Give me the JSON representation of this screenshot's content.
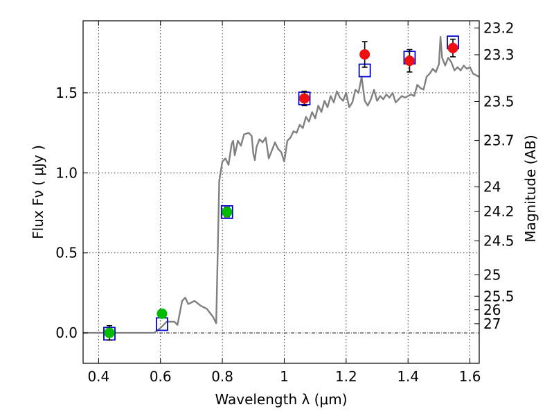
{
  "chart_data": {
    "type": "scatter",
    "xlabel": "Wavelength  λ (μm)",
    "ylabel": "Flux  Fν ( μJy )",
    "ylabel_right": "Magnitude (AB)",
    "xlim": [
      0.35,
      1.63
    ],
    "ylim": [
      -0.19,
      1.95
    ],
    "grid": true,
    "x_ticks": [
      0.4,
      0.6,
      0.8,
      1.0,
      1.2,
      1.4,
      1.6
    ],
    "x_tick_labels": [
      "0.4",
      "0.6",
      "0.8",
      "1",
      "1.2",
      "1.4",
      "1.6"
    ],
    "y_ticks": [
      0.0,
      0.5,
      1.0,
      1.5
    ],
    "y_tick_labels": [
      "0.0",
      "0.5",
      "1.0",
      "1.5"
    ],
    "magnitude_ticks": [
      "23.2",
      "23.3",
      "23.5",
      "23.7",
      "24",
      "24.2",
      "24.5",
      "25",
      "25.5",
      "26",
      "27"
    ],
    "series": [
      {
        "name": "SED model spectrum",
        "color": "#808080",
        "points": [
          [
            0.35,
            0.0
          ],
          [
            0.58,
            0.0
          ],
          [
            0.6,
            0.03
          ],
          [
            0.62,
            0.07
          ],
          [
            0.645,
            0.07
          ],
          [
            0.655,
            0.05
          ],
          [
            0.67,
            0.2
          ],
          [
            0.68,
            0.22
          ],
          [
            0.69,
            0.18
          ],
          [
            0.71,
            0.2
          ],
          [
            0.73,
            0.17
          ],
          [
            0.75,
            0.15
          ],
          [
            0.77,
            0.1
          ],
          [
            0.78,
            0.06
          ],
          [
            0.785,
            0.5
          ],
          [
            0.79,
            0.95
          ],
          [
            0.8,
            1.07
          ],
          [
            0.81,
            1.09
          ],
          [
            0.82,
            1.05
          ],
          [
            0.83,
            1.18
          ],
          [
            0.835,
            1.2
          ],
          [
            0.84,
            1.11
          ],
          [
            0.85,
            1.2
          ],
          [
            0.86,
            1.17
          ],
          [
            0.87,
            1.24
          ],
          [
            0.885,
            1.25
          ],
          [
            0.895,
            1.23
          ],
          [
            0.9,
            1.12
          ],
          [
            0.905,
            1.08
          ],
          [
            0.91,
            1.16
          ],
          [
            0.92,
            1.21
          ],
          [
            0.93,
            1.19
          ],
          [
            0.94,
            1.22
          ],
          [
            0.95,
            1.09
          ],
          [
            0.96,
            1.14
          ],
          [
            0.97,
            1.19
          ],
          [
            0.98,
            1.15
          ],
          [
            0.99,
            1.13
          ],
          [
            1.0,
            1.07
          ],
          [
            1.01,
            1.2
          ],
          [
            1.02,
            1.22
          ],
          [
            1.03,
            1.26
          ],
          [
            1.04,
            1.25
          ],
          [
            1.05,
            1.3
          ],
          [
            1.06,
            1.28
          ],
          [
            1.07,
            1.35
          ],
          [
            1.08,
            1.32
          ],
          [
            1.09,
            1.38
          ],
          [
            1.1,
            1.34
          ],
          [
            1.11,
            1.42
          ],
          [
            1.12,
            1.38
          ],
          [
            1.13,
            1.45
          ],
          [
            1.14,
            1.41
          ],
          [
            1.15,
            1.48
          ],
          [
            1.16,
            1.44
          ],
          [
            1.17,
            1.51
          ],
          [
            1.18,
            1.47
          ],
          [
            1.19,
            1.45
          ],
          [
            1.2,
            1.5
          ],
          [
            1.21,
            1.41
          ],
          [
            1.22,
            1.44
          ],
          [
            1.23,
            1.52
          ],
          [
            1.24,
            1.5
          ],
          [
            1.25,
            1.6
          ],
          [
            1.26,
            1.45
          ],
          [
            1.27,
            1.42
          ],
          [
            1.28,
            1.46
          ],
          [
            1.29,
            1.52
          ],
          [
            1.3,
            1.45
          ],
          [
            1.31,
            1.48
          ],
          [
            1.32,
            1.46
          ],
          [
            1.33,
            1.49
          ],
          [
            1.34,
            1.47
          ],
          [
            1.35,
            1.5
          ],
          [
            1.36,
            1.44
          ],
          [
            1.37,
            1.46
          ],
          [
            1.38,
            1.48
          ],
          [
            1.39,
            1.47
          ],
          [
            1.4,
            1.48
          ],
          [
            1.41,
            1.49
          ],
          [
            1.42,
            1.48
          ],
          [
            1.43,
            1.55
          ],
          [
            1.44,
            1.53
          ],
          [
            1.45,
            1.52
          ],
          [
            1.46,
            1.6
          ],
          [
            1.47,
            1.62
          ],
          [
            1.48,
            1.65
          ],
          [
            1.49,
            1.63
          ],
          [
            1.5,
            1.68
          ],
          [
            1.505,
            1.85
          ],
          [
            1.51,
            1.72
          ],
          [
            1.52,
            1.67
          ],
          [
            1.53,
            1.72
          ],
          [
            1.54,
            1.69
          ],
          [
            1.55,
            1.64
          ],
          [
            1.56,
            1.66
          ],
          [
            1.57,
            1.64
          ],
          [
            1.58,
            1.67
          ],
          [
            1.59,
            1.65
          ],
          [
            1.6,
            1.66
          ],
          [
            1.61,
            1.62
          ],
          [
            1.63,
            1.6
          ]
        ]
      },
      {
        "name": "Model bandpass fluxes (open squares)",
        "color": "#0000cc",
        "points": [
          [
            0.435,
            -0.005
          ],
          [
            0.605,
            0.055
          ],
          [
            0.815,
            0.755
          ],
          [
            1.065,
            1.465
          ],
          [
            1.26,
            1.64
          ],
          [
            1.405,
            1.72
          ],
          [
            1.545,
            1.815
          ]
        ]
      },
      {
        "name": "Observed photometry (green)",
        "color": "#00bb00",
        "points": [
          [
            0.435,
            0.0
          ],
          [
            0.605,
            0.12
          ],
          [
            0.815,
            0.755
          ]
        ],
        "errors": [
          0.045,
          0.025,
          0.03
        ]
      },
      {
        "name": "Observed photometry (red)",
        "color": "#ee1111",
        "points": [
          [
            1.065,
            1.465
          ],
          [
            1.26,
            1.74
          ],
          [
            1.405,
            1.7
          ],
          [
            1.545,
            1.78
          ]
        ],
        "errors": [
          0.045,
          0.08,
          0.07,
          0.055
        ]
      }
    ]
  }
}
